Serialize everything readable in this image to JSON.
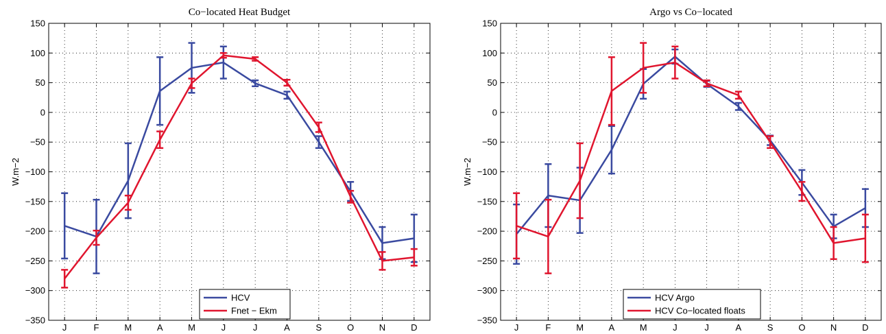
{
  "chart_data": [
    {
      "type": "line",
      "title": "Co−located Heat Budget",
      "xlabel": "",
      "ylabel": "W.m−2",
      "categories": [
        "J",
        "F",
        "M",
        "A",
        "M",
        "J",
        "J",
        "A",
        "S",
        "O",
        "N",
        "D"
      ],
      "ylim": [
        -350,
        150
      ],
      "yticks": [
        -350,
        -300,
        -250,
        -200,
        -150,
        -100,
        -50,
        0,
        50,
        100,
        150
      ],
      "grid": true,
      "legend_position": "bottom-center",
      "series": [
        {
          "name": "HCV",
          "color": "#3a4aa0",
          "values": [
            -191,
            -209,
            -115,
            36,
            75,
            84,
            49,
            29,
            -50,
            -133,
            -220,
            -212
          ],
          "errors": [
            55,
            62,
            63,
            57,
            42,
            27,
            5,
            6,
            10,
            16,
            27,
            40
          ]
        },
        {
          "name": "Fnet − Ekm",
          "color": "#e0152e",
          "values": [
            -280,
            -211,
            -152,
            -46,
            49,
            96,
            90,
            50,
            -25,
            -142,
            -250,
            -244
          ],
          "errors": [
            15,
            12,
            12,
            14,
            8,
            4,
            3,
            5,
            8,
            10,
            15,
            14
          ]
        }
      ]
    },
    {
      "type": "line",
      "title": "Argo vs Co−located",
      "xlabel": "",
      "ylabel": "W.m−2",
      "categories": [
        "J",
        "F",
        "M",
        "A",
        "M",
        "J",
        "J",
        "A",
        "S",
        "O",
        "N",
        "D"
      ],
      "ylim": [
        -350,
        150
      ],
      "yticks": [
        -350,
        -300,
        -250,
        -200,
        -150,
        -100,
        -50,
        0,
        50,
        100,
        150
      ],
      "grid": true,
      "legend_position": "bottom-center",
      "series": [
        {
          "name": "HCV Argo",
          "color": "#3a4aa0",
          "values": [
            -205,
            -140,
            -148,
            -63,
            48,
            94,
            48,
            10,
            -47,
            -118,
            -192,
            -161
          ],
          "errors": [
            50,
            53,
            55,
            40,
            25,
            12,
            5,
            6,
            8,
            21,
            20,
            32
          ]
        },
        {
          "name": "HCV Co−located floats",
          "color": "#e0152e",
          "values": [
            -191,
            -209,
            -115,
            36,
            75,
            84,
            49,
            29,
            -50,
            -133,
            -220,
            -212
          ],
          "errors": [
            55,
            62,
            63,
            57,
            42,
            27,
            5,
            6,
            10,
            16,
            27,
            40
          ]
        }
      ]
    }
  ]
}
